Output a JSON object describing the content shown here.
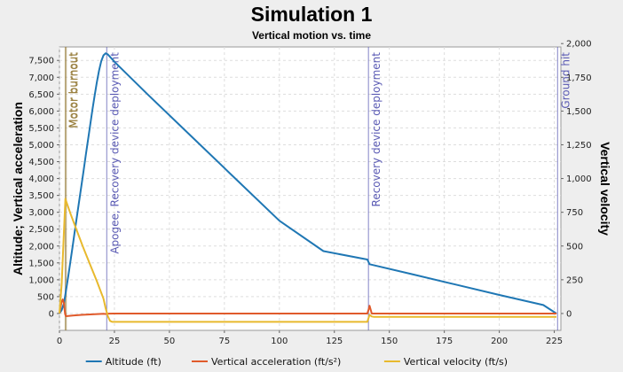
{
  "chart_data": {
    "type": "line",
    "title": "Simulation 1",
    "subtitle": "Vertical motion vs. time",
    "xlabel": "",
    "ylabel_left": "Altitude; Vertical acceleration",
    "ylabel_right": "Vertical velocity",
    "xlim": [
      0,
      228
    ],
    "ylim_left": [
      -500,
      7900
    ],
    "ylim_right": [
      -125,
      1975
    ],
    "x_ticks": [
      0,
      25,
      50,
      75,
      100,
      125,
      150,
      175,
      200,
      225
    ],
    "y_ticks_left": [
      0,
      500,
      1000,
      1500,
      2000,
      2500,
      3000,
      3500,
      4000,
      4500,
      5000,
      5500,
      6000,
      6500,
      7000,
      7500
    ],
    "y_ticks_right": [
      0,
      250,
      500,
      750,
      1000,
      1250,
      1500,
      1750,
      2000
    ],
    "grid": true,
    "legend_position": "bottom",
    "series": [
      {
        "name": "Altitude (ft)",
        "axis": "left",
        "color": "#1f77b4",
        "points": [
          [
            0,
            0
          ],
          [
            1,
            100
          ],
          [
            2,
            300
          ],
          [
            3,
            680
          ],
          [
            4,
            1100
          ],
          [
            5,
            1550
          ],
          [
            6,
            2000
          ],
          [
            7,
            2450
          ],
          [
            8,
            2900
          ],
          [
            9,
            3350
          ],
          [
            10,
            3800
          ],
          [
            11,
            4250
          ],
          [
            12,
            4700
          ],
          [
            13,
            5150
          ],
          [
            14,
            5600
          ],
          [
            15,
            6050
          ],
          [
            16,
            6450
          ],
          [
            17,
            6850
          ],
          [
            18,
            7200
          ],
          [
            19,
            7480
          ],
          [
            20,
            7650
          ],
          [
            21,
            7710
          ],
          [
            22,
            7680
          ],
          [
            25,
            7460
          ],
          [
            40,
            6500
          ],
          [
            60,
            5250
          ],
          [
            80,
            4000
          ],
          [
            100,
            2750
          ],
          [
            120,
            1850
          ],
          [
            140,
            1600
          ],
          [
            141,
            1460
          ],
          [
            160,
            1170
          ],
          [
            180,
            860
          ],
          [
            200,
            550
          ],
          [
            220,
            250
          ],
          [
            226,
            0
          ]
        ]
      },
      {
        "name": "Vertical acceleration (ft/s²)",
        "axis": "left",
        "color": "#e05a2b",
        "points": [
          [
            0,
            0
          ],
          [
            0.5,
            180
          ],
          [
            1,
            350
          ],
          [
            1.5,
            420
          ],
          [
            2,
            300
          ],
          [
            2.6,
            -20
          ],
          [
            3,
            -80
          ],
          [
            6,
            -60
          ],
          [
            10,
            -40
          ],
          [
            15,
            -25
          ],
          [
            20,
            -10
          ],
          [
            21,
            -15
          ],
          [
            22,
            -5
          ],
          [
            25,
            0
          ],
          [
            140,
            0
          ],
          [
            140.5,
            100
          ],
          [
            141,
            230
          ],
          [
            141.5,
            120
          ],
          [
            142,
            0
          ],
          [
            226,
            0
          ]
        ]
      },
      {
        "name": "Vertical velocity (ft/s)",
        "axis": "right",
        "color": "#e8b92d",
        "points": [
          [
            0,
            0
          ],
          [
            1,
            220
          ],
          [
            2,
            600
          ],
          [
            2.7,
            850
          ],
          [
            3,
            835
          ],
          [
            5,
            740
          ],
          [
            8,
            610
          ],
          [
            11,
            480
          ],
          [
            14,
            360
          ],
          [
            17,
            240
          ],
          [
            20,
            110
          ],
          [
            21,
            40
          ],
          [
            22,
            -20
          ],
          [
            23,
            -55
          ],
          [
            24,
            -62
          ],
          [
            140,
            -62
          ],
          [
            141,
            -10
          ],
          [
            142,
            -22
          ],
          [
            143,
            -25
          ],
          [
            226,
            -25
          ]
        ]
      }
    ],
    "events": [
      {
        "x": 2.6,
        "label": "Motor burnout",
        "color": "#9a8040"
      },
      {
        "x": 3.1,
        "label": "Motor burnout",
        "color": "#9a8040"
      },
      {
        "x": 21.5,
        "label": "Apogee, Recovery device deployment",
        "color": "#5a5ab4"
      },
      {
        "x": 140.5,
        "label": "Recovery device deployment",
        "color": "#5a5ab4"
      },
      {
        "x": 226.5,
        "label": "Ground hit",
        "color": "#5a5ab4"
      }
    ]
  }
}
